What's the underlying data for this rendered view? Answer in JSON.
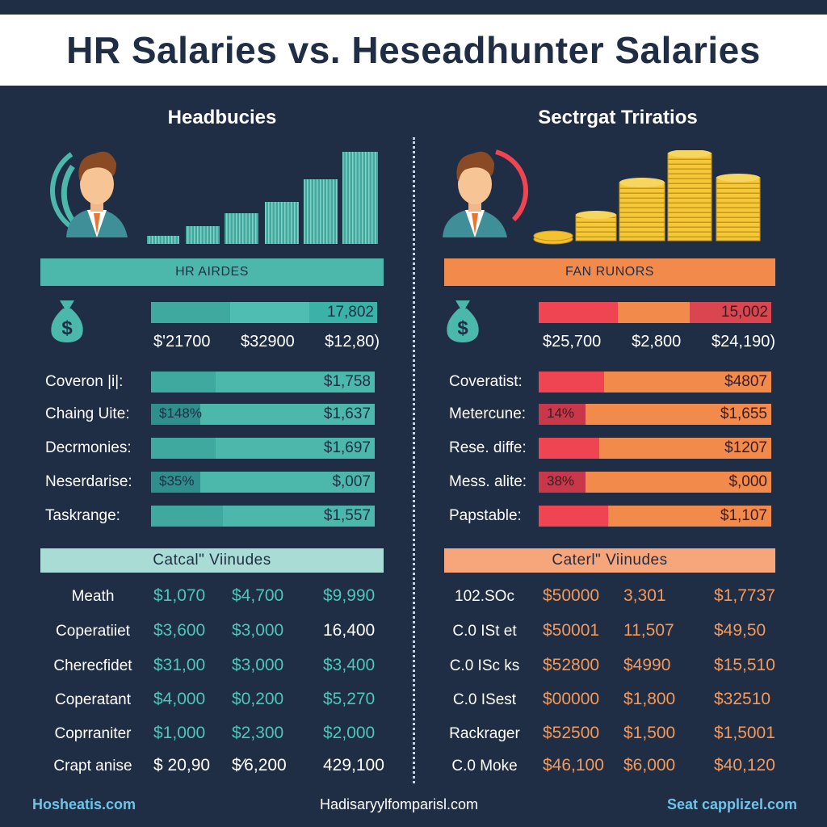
{
  "title": "HR Salaries vs. Heseadhunter Salaries",
  "colors": {
    "background": "#1f2d45",
    "teal": "#4cb8ab",
    "teal_light": "#a8dcd4",
    "red": "#ef4452",
    "orange": "#f28a4c",
    "orange_light": "#f7a57a"
  },
  "left": {
    "heading": "Headbucies",
    "band_top": "HR AIRDES",
    "total": {
      "value": "17,802",
      "values": [
        "$'21700",
        "$32900",
        "$12,80)"
      ]
    },
    "rows": [
      {
        "label": "Coveron |i|:",
        "inner": "",
        "value": "$1,758"
      },
      {
        "label": "Chaing Uite:",
        "inner": "$148%",
        "value": "$1,637"
      },
      {
        "label": "Decrmonies:",
        "inner": "",
        "value": "$1,697"
      },
      {
        "label": "Neserdarise:",
        "inner": "$35%",
        "value": "$,007"
      },
      {
        "label": "Taskrange:",
        "inner": "",
        "value": "$1,557"
      }
    ],
    "band_mid": "Catcal\" Viinudes",
    "table": [
      {
        "label": "Meath",
        "c1": "$1,070",
        "c2": "$4,700",
        "c3": "$9,990"
      },
      {
        "label": "Coperatiiet",
        "c1": "$3,600",
        "c2": "$3,000",
        "c3": "16,400"
      },
      {
        "label": "Cherecfidet",
        "c1": "$31,00",
        "c2": "$3,000",
        "c3": "$3,400"
      },
      {
        "label": "Coperatant",
        "c1": "$4,000",
        "c2": "$0,200",
        "c3": "$5,270"
      },
      {
        "label": "Coprraniter",
        "c1": "$1,000",
        "c2": "$2,300",
        "c3": "$2,000"
      },
      {
        "label": "Crapt anise",
        "c1": "$ 20,90",
        "c2": "$⁄6,200",
        "c3": "429,100"
      }
    ]
  },
  "right": {
    "heading": "Sectrgat Triratios",
    "band_top": "FAN RUNORS",
    "total": {
      "value": "15,002",
      "values": [
        "$25,700",
        "$2,800",
        "$24,190)"
      ]
    },
    "rows": [
      {
        "label": "Coveratist:",
        "inner": "",
        "value": "$4807"
      },
      {
        "label": "Metercune:",
        "inner": "14%",
        "value": "$1,655"
      },
      {
        "label": "Rese. diffe:",
        "inner": "",
        "value": "$1207"
      },
      {
        "label": "Mess. alite:",
        "inner": "38%",
        "value": "$,000"
      },
      {
        "label": "Papstable:",
        "inner": "",
        "value": "$1,107"
      }
    ],
    "band_mid": "Caterl\" Viinudes",
    "table": [
      {
        "label": "102.SOc",
        "c1": "$50000",
        "c2": "3,301",
        "c3": "$1,7737"
      },
      {
        "label": "C.0 ISt et",
        "c1": "$50001",
        "c2": "11,507",
        "c3": "$49,50"
      },
      {
        "label": "C.0 ISc ks",
        "c1": "$52800",
        "c2": "$4990",
        "c3": "$15,510"
      },
      {
        "label": "C.0 ISest",
        "c1": "$00000",
        "c2": "$1,800",
        "c3": "$32510"
      },
      {
        "label": "Rackrager",
        "c1": "$52500",
        "c2": "$1,500",
        "c3": "$1,5001"
      },
      {
        "label": "C.0 Moke",
        "c1": "$46,100",
        "c2": "$6,000",
        "c3": "$40,120"
      }
    ]
  },
  "footer": {
    "left": "Hosheatis.com",
    "center": "Hadisaryylfomparisl.com",
    "right": "Seat capplizel.com"
  }
}
